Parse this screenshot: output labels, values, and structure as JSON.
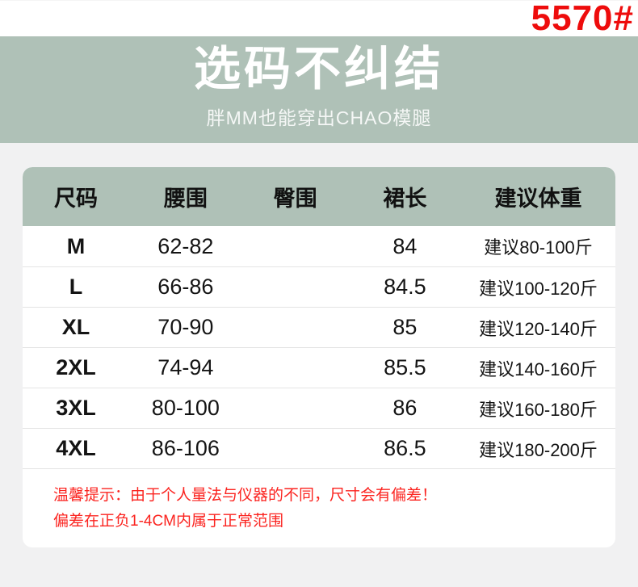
{
  "product_code": "5570#",
  "banner": {
    "title": "选码不纠结",
    "subtitle": "胖MM也能穿出CHAO模腿"
  },
  "table": {
    "headers": [
      "尺码",
      "腰围",
      "臀围",
      "裙长",
      "建议体重"
    ],
    "rows": [
      {
        "size": "M",
        "waist": "62-82",
        "hip": "",
        "length": "84",
        "weight": "建议80-100斤"
      },
      {
        "size": "L",
        "waist": "66-86",
        "hip": "",
        "length": "84.5",
        "weight": "建议100-120斤"
      },
      {
        "size": "XL",
        "waist": "70-90",
        "hip": "",
        "length": "85",
        "weight": "建议120-140斤"
      },
      {
        "size": "2XL",
        "waist": "74-94",
        "hip": "",
        "length": "85.5",
        "weight": "建议140-160斤"
      },
      {
        "size": "3XL",
        "waist": "80-100",
        "hip": "",
        "length": "86",
        "weight": "建议160-180斤"
      },
      {
        "size": "4XL",
        "waist": "86-106",
        "hip": "",
        "length": "86.5",
        "weight": "建议180-200斤"
      }
    ]
  },
  "notice": {
    "line1": "温馨提示：由于个人量法与仪器的不同，尺寸会有偏差！",
    "line2": "偏差在正负1-4CM内属于正常范围"
  },
  "colors": {
    "accent_red": "#ee0c0c",
    "notice_red": "#fb2420",
    "sage_green": "#afc1b7",
    "page_gray": "#f1f1f2"
  }
}
